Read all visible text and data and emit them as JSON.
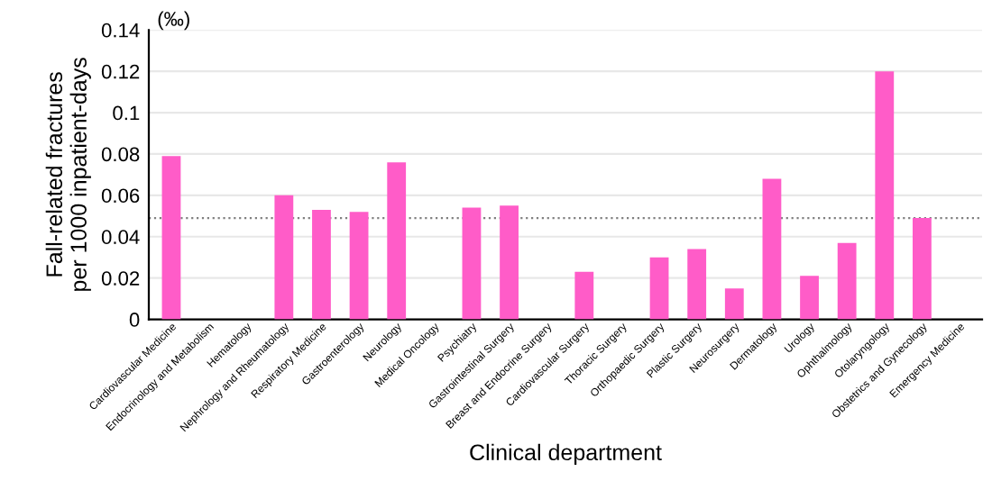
{
  "chart_data": {
    "type": "bar",
    "xlabel": "Clinical department",
    "ylabel": "Fall-related fractures\nper 1000 inpatient-days",
    "annotations": [
      "(‰)"
    ],
    "categories": [
      "Cardiovascular Medicine",
      "Endocrinology and Metabolism",
      "Hematology",
      "Nephrology and Rheumatology",
      "Respiratory Medicine",
      "Gastroenterology",
      "Neurology",
      "Medical Oncology",
      "Psychiatry",
      "Gastrointestinal Surgery",
      "Breast and Endocrine Surgery",
      "Cardiovascular Surgery",
      "Thoracic Surgery",
      "Orthopaedic Surgery",
      "Plastic Surgery",
      "Neurosurgery",
      "Dermatology",
      "Urology",
      "Ophthalmology",
      "Otolaryngology",
      "Obstetrics and Gynecology",
      "Emergency Medicine"
    ],
    "values": [
      0.079,
      0,
      0,
      0.06,
      0.053,
      0.052,
      0.076,
      0,
      0.054,
      0.055,
      0,
      0.023,
      0,
      0.03,
      0.034,
      0.015,
      0.068,
      0.021,
      0.037,
      0.12,
      0.049,
      0
    ],
    "color": "#ff5cc8",
    "ylim": [
      0,
      0.14
    ],
    "yticks": [
      {
        "value": 0,
        "label": "0"
      },
      0.02,
      0.04,
      0.06,
      0.08,
      {
        "value": 0.1,
        "label": "0.1"
      },
      0.12,
      0.14
    ],
    "grid": "y",
    "ref_lines": [
      {
        "axis": "y",
        "value": 0.049,
        "color": "#808080",
        "line_style": "dotted"
      }
    ]
  }
}
